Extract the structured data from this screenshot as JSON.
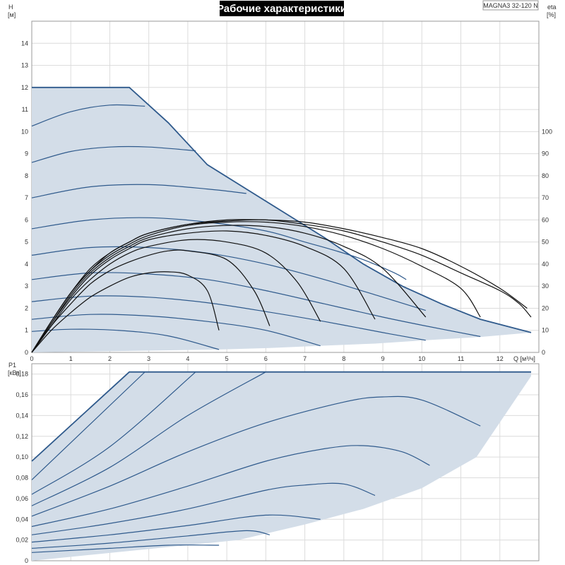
{
  "title": "Рабочие характеристики",
  "model": "MAGNA3 32-120 N",
  "top_plot": {
    "y_left": {
      "name": "H",
      "unit": "[м]",
      "min": 0,
      "max": 15,
      "ticks": [
        0,
        1,
        2,
        3,
        4,
        5,
        6,
        7,
        8,
        9,
        10,
        11,
        12,
        13,
        14
      ]
    },
    "y_right": {
      "name": "eta",
      "unit": "[%]",
      "min": 0,
      "max": 150,
      "ticks": [
        0,
        10,
        20,
        30,
        40,
        50,
        60,
        70,
        80,
        90,
        100
      ]
    },
    "x": {
      "label": "Q [м³/ч]",
      "min": 0,
      "max": 13,
      "ticks": [
        0,
        1,
        2,
        3,
        4,
        5,
        6,
        7,
        8,
        9,
        10,
        11,
        12
      ]
    }
  },
  "bottom_plot": {
    "y": {
      "name": "P1",
      "unit": "[кВт]",
      "min": 0,
      "max": 0.19,
      "ticks": [
        "0",
        "0,02",
        "0,04",
        "0,06",
        "0,08",
        "0,10",
        "0,12",
        "0,14",
        "0,16",
        "0,18"
      ],
      "tick_values": [
        0,
        0.02,
        0.04,
        0.06,
        0.08,
        0.1,
        0.12,
        0.14,
        0.16,
        0.18
      ]
    },
    "x": {
      "min": 0,
      "max": 13,
      "ticks": [
        0,
        1,
        2,
        3,
        4,
        5,
        6,
        7,
        8,
        9,
        10,
        11,
        12
      ]
    }
  },
  "colors": {
    "curve": "#2f5a8c",
    "area": "#d3dde8",
    "eta": "#111111"
  },
  "chart_data": [
    {
      "type": "line",
      "plot": "H-Q",
      "envelope": [
        [
          0,
          12
        ],
        [
          2.5,
          12
        ],
        [
          3.5,
          10.4
        ],
        [
          4.5,
          8.5
        ],
        [
          5.5,
          7.4
        ],
        [
          6.5,
          6.3
        ],
        [
          7.5,
          5.2
        ],
        [
          8.5,
          4.0
        ],
        [
          9.5,
          3.0
        ],
        [
          10.5,
          2.2
        ],
        [
          11.5,
          1.5
        ],
        [
          12.8,
          0.9
        ]
      ],
      "area_floor": [
        [
          0,
          0
        ],
        [
          4.8,
          0.13
        ],
        [
          6.1,
          0.2
        ],
        [
          7.4,
          0.3
        ],
        [
          8.8,
          0.4
        ],
        [
          10.1,
          0.55
        ],
        [
          11.5,
          0.7
        ],
        [
          12.8,
          0.9
        ]
      ],
      "series": [
        {
          "points": [
            [
              0,
              10.25
            ],
            [
              1,
              10.9
            ],
            [
              2,
              11.2
            ],
            [
              2.9,
              11.15
            ]
          ]
        },
        {
          "points": [
            [
              0,
              8.6
            ],
            [
              1,
              9.1
            ],
            [
              2,
              9.3
            ],
            [
              3,
              9.3
            ],
            [
              4.2,
              9.13
            ]
          ]
        },
        {
          "points": [
            [
              0,
              7.0
            ],
            [
              1.5,
              7.5
            ],
            [
              3,
              7.6
            ],
            [
              4.5,
              7.4
            ],
            [
              5.5,
              7.2
            ]
          ]
        },
        {
          "points": [
            [
              0,
              5.6
            ],
            [
              1.5,
              6.0
            ],
            [
              3,
              6.1
            ],
            [
              4.5,
              5.9
            ],
            [
              6,
              5.5
            ],
            [
              7,
              5.0
            ],
            [
              7.8,
              4.6
            ],
            [
              8.5,
              4.2
            ],
            [
              9.3,
              3.6
            ],
            [
              9.6,
              3.3
            ]
          ]
        },
        {
          "points": [
            [
              0,
              4.4
            ],
            [
              1.5,
              4.75
            ],
            [
              3,
              4.75
            ],
            [
              4.5,
              4.5
            ],
            [
              6,
              4.0
            ],
            [
              7.5,
              3.3
            ],
            [
              9,
              2.5
            ],
            [
              10.1,
              1.9
            ]
          ]
        },
        {
          "points": [
            [
              0,
              3.3
            ],
            [
              1.5,
              3.6
            ],
            [
              3,
              3.55
            ],
            [
              4.5,
              3.3
            ],
            [
              6,
              2.8
            ],
            [
              7.5,
              2.2
            ],
            [
              9,
              1.6
            ],
            [
              10.1,
              1.2
            ],
            [
              11.5,
              0.72
            ]
          ]
        },
        {
          "points": [
            [
              0,
              2.3
            ],
            [
              1.5,
              2.55
            ],
            [
              3,
              2.5
            ],
            [
              4.5,
              2.25
            ],
            [
              6,
              1.85
            ],
            [
              7.5,
              1.4
            ],
            [
              9,
              0.9
            ],
            [
              10.1,
              0.55
            ]
          ]
        },
        {
          "points": [
            [
              0,
              1.5
            ],
            [
              1.5,
              1.72
            ],
            [
              3,
              1.65
            ],
            [
              4.5,
              1.4
            ],
            [
              6,
              1.0
            ],
            [
              7.4,
              0.3
            ]
          ]
        },
        {
          "points": [
            [
              0,
              0.95
            ],
            [
              1,
              1.05
            ],
            [
              2.2,
              1.0
            ],
            [
              3.5,
              0.75
            ],
            [
              4.8,
              0.13
            ]
          ]
        }
      ]
    },
    {
      "type": "line",
      "plot": "eta-Q",
      "y_axis": "right",
      "series": [
        {
          "points": [
            [
              0,
              0
            ],
            [
              0.5,
              10
            ],
            [
              1,
              18
            ],
            [
              1.5,
              25
            ],
            [
              2,
              30
            ],
            [
              2.5,
              34
            ],
            [
              3,
              36
            ],
            [
              3.5,
              36.5
            ],
            [
              4,
              35
            ],
            [
              4.5,
              28
            ],
            [
              4.8,
              10
            ]
          ]
        },
        {
          "points": [
            [
              0,
              0
            ],
            [
              0.5,
              12
            ],
            [
              1,
              22
            ],
            [
              1.5,
              31
            ],
            [
              2,
              37
            ],
            [
              2.5,
              41
            ],
            [
              3,
              44
            ],
            [
              3.5,
              46
            ],
            [
              4,
              46
            ],
            [
              5,
              42
            ],
            [
              5.7,
              28
            ],
            [
              6.1,
              12
            ]
          ]
        },
        {
          "points": [
            [
              0,
              0
            ],
            [
              0.5,
              12
            ],
            [
              1,
              24
            ],
            [
              1.5,
              33
            ],
            [
              2,
              40
            ],
            [
              2.5,
              45
            ],
            [
              3,
              48
            ],
            [
              4,
              51
            ],
            [
              5,
              50
            ],
            [
              6,
              45
            ],
            [
              6.8,
              32
            ],
            [
              7.4,
              14
            ]
          ]
        },
        {
          "points": [
            [
              0,
              0
            ],
            [
              0.5,
              13
            ],
            [
              1,
              25
            ],
            [
              1.5,
              35
            ],
            [
              2,
              42
            ],
            [
              2.5,
              47
            ],
            [
              3,
              51
            ],
            [
              4,
              54
            ],
            [
              5,
              55
            ],
            [
              6,
              53
            ],
            [
              7,
              48
            ],
            [
              8,
              38
            ],
            [
              8.8,
              15
            ]
          ]
        },
        {
          "points": [
            [
              0,
              0
            ],
            [
              0.5,
              13
            ],
            [
              1,
              26
            ],
            [
              1.5,
              36
            ],
            [
              2,
              43
            ],
            [
              2.5,
              48
            ],
            [
              3,
              52
            ],
            [
              4,
              56
            ],
            [
              5,
              57.5
            ],
            [
              6,
              57
            ],
            [
              7,
              54
            ],
            [
              8,
              48
            ],
            [
              9,
              38
            ],
            [
              10.1,
              16
            ]
          ]
        },
        {
          "points": [
            [
              0,
              0
            ],
            [
              0.5,
              14
            ],
            [
              1,
              27
            ],
            [
              1.5,
              37
            ],
            [
              2,
              44
            ],
            [
              2.5,
              49
            ],
            [
              3,
              53
            ],
            [
              4,
              57.5
            ],
            [
              5,
              59
            ],
            [
              6,
              59
            ],
            [
              7,
              57
            ],
            [
              8,
              53
            ],
            [
              9,
              47
            ],
            [
              10,
              39
            ],
            [
              11,
              29
            ],
            [
              11.5,
              16
            ]
          ]
        },
        {
          "points": [
            [
              0,
              0
            ],
            [
              0.5,
              14
            ],
            [
              1,
              27
            ],
            [
              1.5,
              37
            ],
            [
              2,
              45
            ],
            [
              2.5,
              50
            ],
            [
              3,
              54
            ],
            [
              4,
              58
            ],
            [
              5,
              59.5
            ],
            [
              6,
              60
            ],
            [
              7,
              58
            ],
            [
              8,
              55
            ],
            [
              9,
              50
            ],
            [
              10,
              44
            ],
            [
              11,
              36
            ],
            [
              12,
              28
            ],
            [
              12.5,
              22
            ],
            [
              12.8,
              16
            ]
          ]
        },
        {
          "points": [
            [
              0,
              0
            ],
            [
              0.5,
              14
            ],
            [
              1,
              27
            ],
            [
              1.5,
              38
            ],
            [
              2,
              45
            ],
            [
              2.5,
              50
            ],
            [
              3,
              54
            ],
            [
              4,
              58
            ],
            [
              5,
              60
            ],
            [
              6,
              60
            ],
            [
              7,
              59
            ],
            [
              8,
              56
            ],
            [
              9,
              52
            ],
            [
              10,
              47
            ],
            [
              11,
              39
            ],
            [
              12,
              29
            ],
            [
              12.7,
              20
            ]
          ]
        }
      ]
    },
    {
      "type": "line",
      "plot": "P1-Q",
      "envelope_top": [
        [
          0,
          0.096
        ],
        [
          2.5,
          0.182
        ],
        [
          12.8,
          0.182
        ]
      ],
      "area_floor": [
        [
          0,
          0
        ],
        [
          5.3,
          0.02
        ],
        [
          7,
          0.035
        ],
        [
          8.5,
          0.05
        ],
        [
          10,
          0.07
        ],
        [
          11.4,
          0.1
        ],
        [
          12.8,
          0.178
        ]
      ],
      "series": [
        {
          "points": [
            [
              0,
              0.078
            ],
            [
              2.9,
              0.182
            ]
          ]
        },
        {
          "points": [
            [
              0,
              0.064
            ],
            [
              2,
              0.11
            ],
            [
              4.2,
              0.182
            ]
          ]
        },
        {
          "points": [
            [
              0,
              0.053
            ],
            [
              2,
              0.09
            ],
            [
              4,
              0.14
            ],
            [
              6,
              0.182
            ]
          ]
        },
        {
          "points": [
            [
              0,
              0.043
            ],
            [
              2,
              0.072
            ],
            [
              4,
              0.105
            ],
            [
              6,
              0.133
            ],
            [
              8,
              0.153
            ],
            [
              9,
              0.158
            ],
            [
              10,
              0.155
            ],
            [
              11.5,
              0.13
            ]
          ]
        },
        {
          "points": [
            [
              0,
              0.033
            ],
            [
              2,
              0.05
            ],
            [
              4,
              0.072
            ],
            [
              6,
              0.096
            ],
            [
              7.5,
              0.108
            ],
            [
              8.5,
              0.111
            ],
            [
              9.5,
              0.105
            ],
            [
              10.2,
              0.092
            ]
          ]
        },
        {
          "points": [
            [
              0,
              0.025
            ],
            [
              2,
              0.036
            ],
            [
              4,
              0.05
            ],
            [
              6,
              0.068
            ],
            [
              7,
              0.073
            ],
            [
              8,
              0.074
            ],
            [
              8.8,
              0.063
            ]
          ]
        },
        {
          "points": [
            [
              0,
              0.018
            ],
            [
              2,
              0.025
            ],
            [
              4,
              0.034
            ],
            [
              6,
              0.044
            ],
            [
              7.4,
              0.04
            ]
          ]
        },
        {
          "points": [
            [
              0,
              0.012
            ],
            [
              2,
              0.017
            ],
            [
              4,
              0.024
            ],
            [
              5.5,
              0.029
            ],
            [
              6.1,
              0.025
            ]
          ]
        },
        {
          "points": [
            [
              0,
              0.008
            ],
            [
              2,
              0.012
            ],
            [
              3.5,
              0.015
            ],
            [
              4.8,
              0.015
            ]
          ]
        }
      ]
    }
  ]
}
